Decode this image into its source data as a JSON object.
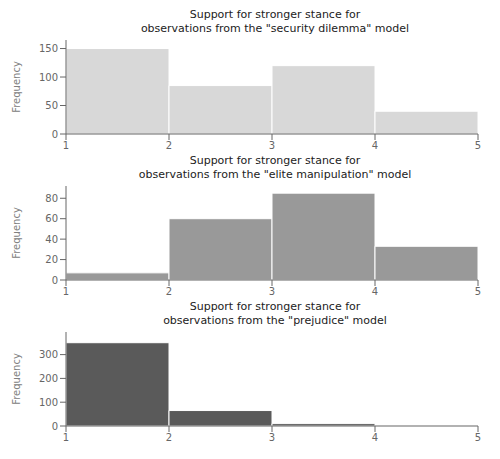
{
  "chart_data": [
    {
      "type": "histogram",
      "title": "Support for stronger stance for\nobservations from the \"security dilemma\" model",
      "bins": [
        1,
        2,
        3,
        4,
        5
      ],
      "values": [
        150,
        85,
        120,
        40
      ],
      "color": "#d8d8d8",
      "xlim": [
        1,
        5
      ],
      "xticks": [
        1,
        2,
        3,
        4,
        5
      ],
      "ylim": [
        0,
        165
      ],
      "yticks": [
        0,
        50,
        100,
        150
      ],
      "y_label": "Frequency",
      "grid": false
    },
    {
      "type": "histogram",
      "title": "Support for stronger stance for\nobservations from the \"elite manipulation\" model",
      "bins": [
        1,
        2,
        3,
        4,
        5
      ],
      "values": [
        7,
        60,
        85,
        33
      ],
      "color": "#999999",
      "xlim": [
        1,
        5
      ],
      "xticks": [
        1,
        2,
        3,
        4,
        5
      ],
      "ylim": [
        0,
        92
      ],
      "yticks": [
        0,
        20,
        40,
        60,
        80
      ],
      "y_label": "Frequency",
      "grid": false
    },
    {
      "type": "histogram",
      "title": "Support for stronger stance for\nobservations from the \"prejudice\" model",
      "bins": [
        1,
        2,
        3,
        4,
        5
      ],
      "values": [
        350,
        65,
        10,
        2
      ],
      "color": "#5a5a5a",
      "xlim": [
        1,
        5
      ],
      "xticks": [
        1,
        2,
        3,
        4,
        5
      ],
      "ylim": [
        0,
        395
      ],
      "yticks": [
        0,
        100,
        200,
        300
      ],
      "y_label": "Frequency",
      "grid": false
    }
  ]
}
